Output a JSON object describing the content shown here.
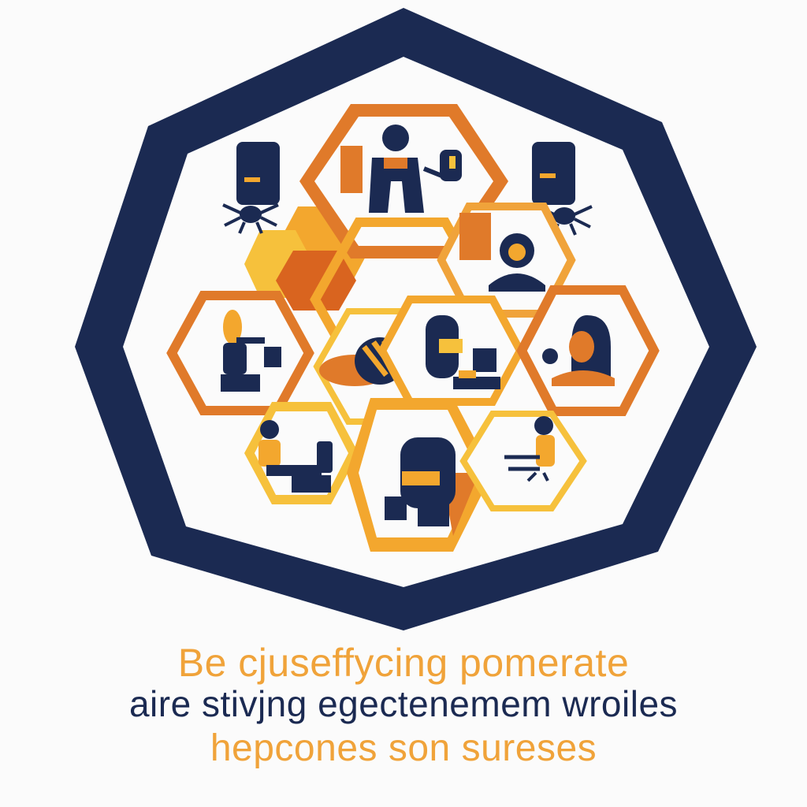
{
  "colors": {
    "navy": "#1b2a52",
    "orange": "#e07a2a",
    "amber": "#f3a72e",
    "gold": "#f6c13c",
    "background": "#fbfbfb"
  },
  "emblem": {
    "frame_shape": "octagon-outline",
    "icons": [
      "person-at-desk-icon",
      "server-tower-icon",
      "spider-icon",
      "honeycomb-cluster-icon",
      "person-reading-icon",
      "bee-icon",
      "worker-at-machine-icon",
      "person-portrait-icon",
      "person-at-workbench-icon",
      "seated-figure-icon",
      "person-with-tool-icon"
    ]
  },
  "caption": {
    "line1": "Be cjuseffycing pomerate",
    "line2": "aire stivjng egectenemem wroiles",
    "line3": "hepcones son sureses"
  }
}
